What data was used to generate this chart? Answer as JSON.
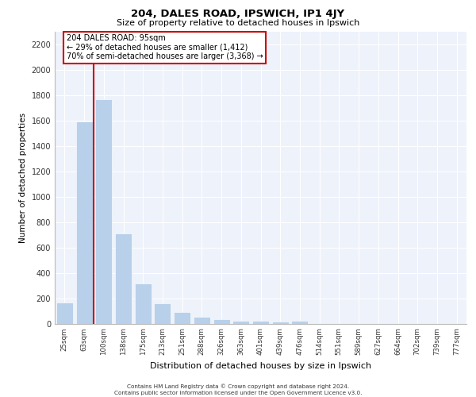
{
  "title1": "204, DALES ROAD, IPSWICH, IP1 4JY",
  "title2": "Size of property relative to detached houses in Ipswich",
  "xlabel": "Distribution of detached houses by size in Ipswich",
  "ylabel": "Number of detached properties",
  "categories": [
    "25sqm",
    "63sqm",
    "100sqm",
    "138sqm",
    "175sqm",
    "213sqm",
    "251sqm",
    "288sqm",
    "326sqm",
    "363sqm",
    "401sqm",
    "439sqm",
    "476sqm",
    "514sqm",
    "551sqm",
    "589sqm",
    "627sqm",
    "664sqm",
    "702sqm",
    "739sqm",
    "777sqm"
  ],
  "values": [
    163,
    1590,
    1770,
    710,
    315,
    160,
    88,
    55,
    35,
    25,
    25,
    18,
    20,
    0,
    0,
    0,
    0,
    0,
    0,
    0,
    0
  ],
  "bar_color": "#b8d0ea",
  "vline_color": "#cc0000",
  "vline_index": 1.5,
  "annotation_text": "204 DALES ROAD: 95sqm\n← 29% of detached houses are smaller (1,412)\n70% of semi-detached houses are larger (3,368) →",
  "annotation_box_color": "#cc0000",
  "background_color": "#eef2fb",
  "grid_color": "#ffffff",
  "ylim": [
    0,
    2300
  ],
  "yticks": [
    0,
    200,
    400,
    600,
    800,
    1000,
    1200,
    1400,
    1600,
    1800,
    2000,
    2200
  ],
  "footer_line1": "Contains HM Land Registry data © Crown copyright and database right 2024.",
  "footer_line2": "Contains public sector information licensed under the Open Government Licence v3.0."
}
